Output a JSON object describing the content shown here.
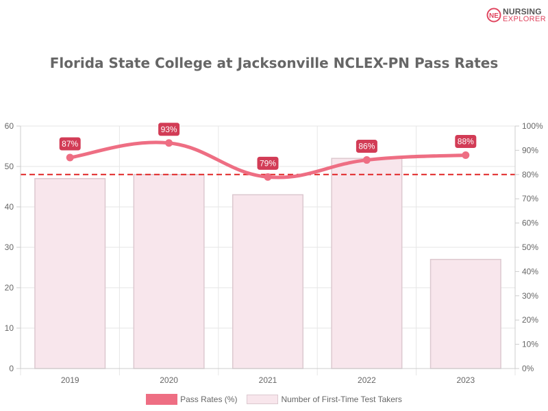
{
  "logo": {
    "line1": "NURSING",
    "line2": "EXPLORER",
    "mark": "NE",
    "icon": "nursing-explorer-logo-icon"
  },
  "colors": {
    "line": "#ee6e83",
    "bar_fill": "#f8e6ec",
    "bar_border": "#dcc8cf",
    "label_bg": "#d23c56",
    "reference_line": "#e02424",
    "grid": "#e6e6e6",
    "tick_text": "#666666"
  },
  "chart_data": {
    "type": "bar",
    "title": "Florida State College at Jacksonville NCLEX-PN Pass Rates",
    "categories": [
      "2019",
      "2020",
      "2021",
      "2022",
      "2023"
    ],
    "series": [
      {
        "name": "Number of First-Time Test Takers",
        "type": "bar",
        "axis": "left",
        "values": [
          47,
          48,
          43,
          52,
          27
        ]
      },
      {
        "name": "Pass Rates (%)",
        "type": "line",
        "axis": "right",
        "values": [
          87,
          93,
          79,
          86,
          88
        ],
        "data_labels": [
          "87%",
          "93%",
          "79%",
          "86%",
          "88%"
        ]
      }
    ],
    "reference_line": {
      "axis": "right",
      "value": 80,
      "style": "dashed"
    },
    "y_left": {
      "min": 0,
      "max": 60,
      "ticks": [
        "0",
        "10",
        "20",
        "30",
        "40",
        "50",
        "60"
      ]
    },
    "y_right": {
      "min": 0,
      "max": 100,
      "ticks": [
        "0%",
        "10%",
        "20%",
        "30%",
        "40%",
        "50%",
        "60%",
        "70%",
        "80%",
        "90%",
        "100%"
      ]
    },
    "grid": true,
    "legend_position": "bottom"
  }
}
